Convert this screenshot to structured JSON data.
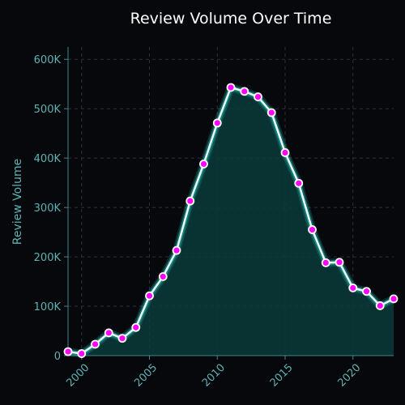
{
  "chart_data": {
    "type": "area",
    "title": "Review Volume Over Time",
    "xlabel": "",
    "ylabel": "Review Volume",
    "x": [
      1999,
      2000,
      2001,
      2002,
      2003,
      2004,
      2005,
      2006,
      2007,
      2008,
      2009,
      2010,
      2011,
      2012,
      2013,
      2014,
      2015,
      2016,
      2017,
      2018,
      2019,
      2020,
      2021,
      2022,
      2023
    ],
    "y": [
      8000,
      4000,
      23000,
      46000,
      35000,
      57000,
      121000,
      160000,
      213000,
      313000,
      388000,
      471000,
      543000,
      535000,
      524000,
      492000,
      411000,
      349000,
      255000,
      188000,
      189000,
      137000,
      130000,
      101000,
      115000
    ],
    "xlim": [
      1999,
      2023
    ],
    "ylim": [
      0,
      625000
    ],
    "xticks": [
      2000,
      2005,
      2010,
      2015,
      2020
    ],
    "yticks": [
      0,
      100000,
      200000,
      300000,
      400000,
      500000,
      600000
    ],
    "ytick_labels": [
      "0",
      "100K",
      "200K",
      "300K",
      "400K",
      "500K",
      "600K"
    ],
    "grid": true,
    "colors": {
      "line": "#2fe0d0",
      "marker_fill": "#ff00ff",
      "marker_edge": "#ffffff",
      "area": "#0a3a3a",
      "background": "#06080c",
      "tick_text": "#5fb3b3",
      "title_text": "#ffffff",
      "grid": "#2a3038"
    }
  }
}
